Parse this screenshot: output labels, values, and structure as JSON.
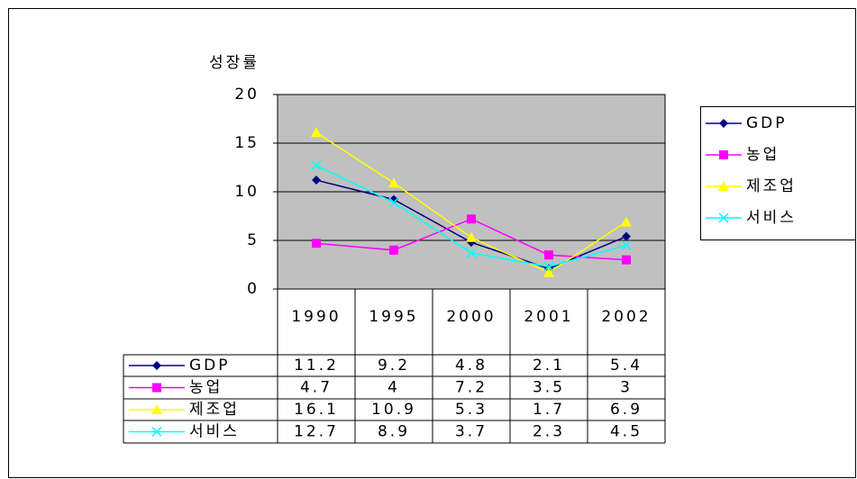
{
  "chart_data": {
    "type": "line",
    "y_label": "성장률",
    "categories": [
      "1990",
      "1995",
      "2000",
      "2001",
      "2002"
    ],
    "series": [
      {
        "name": "GDP",
        "color": "#000080",
        "marker": "diamond",
        "values": [
          11.2,
          9.2,
          4.8,
          2.1,
          5.4
        ]
      },
      {
        "name": "농업",
        "color": "#ff00ff",
        "marker": "square",
        "values": [
          4.7,
          4,
          7.2,
          3.5,
          3
        ]
      },
      {
        "name": "제조업",
        "color": "#ffff00",
        "marker": "triangle",
        "values": [
          16.1,
          10.9,
          5.3,
          1.7,
          6.9
        ]
      },
      {
        "name": "서비스",
        "color": "#00ffff",
        "marker": "x",
        "values": [
          12.7,
          8.9,
          3.7,
          2.3,
          4.5
        ]
      }
    ],
    "ylim": [
      0,
      20
    ],
    "yticks": [
      0,
      5,
      10,
      15,
      20
    ],
    "grid": true,
    "legend": "right",
    "plot_background": "#c0c0c0"
  }
}
